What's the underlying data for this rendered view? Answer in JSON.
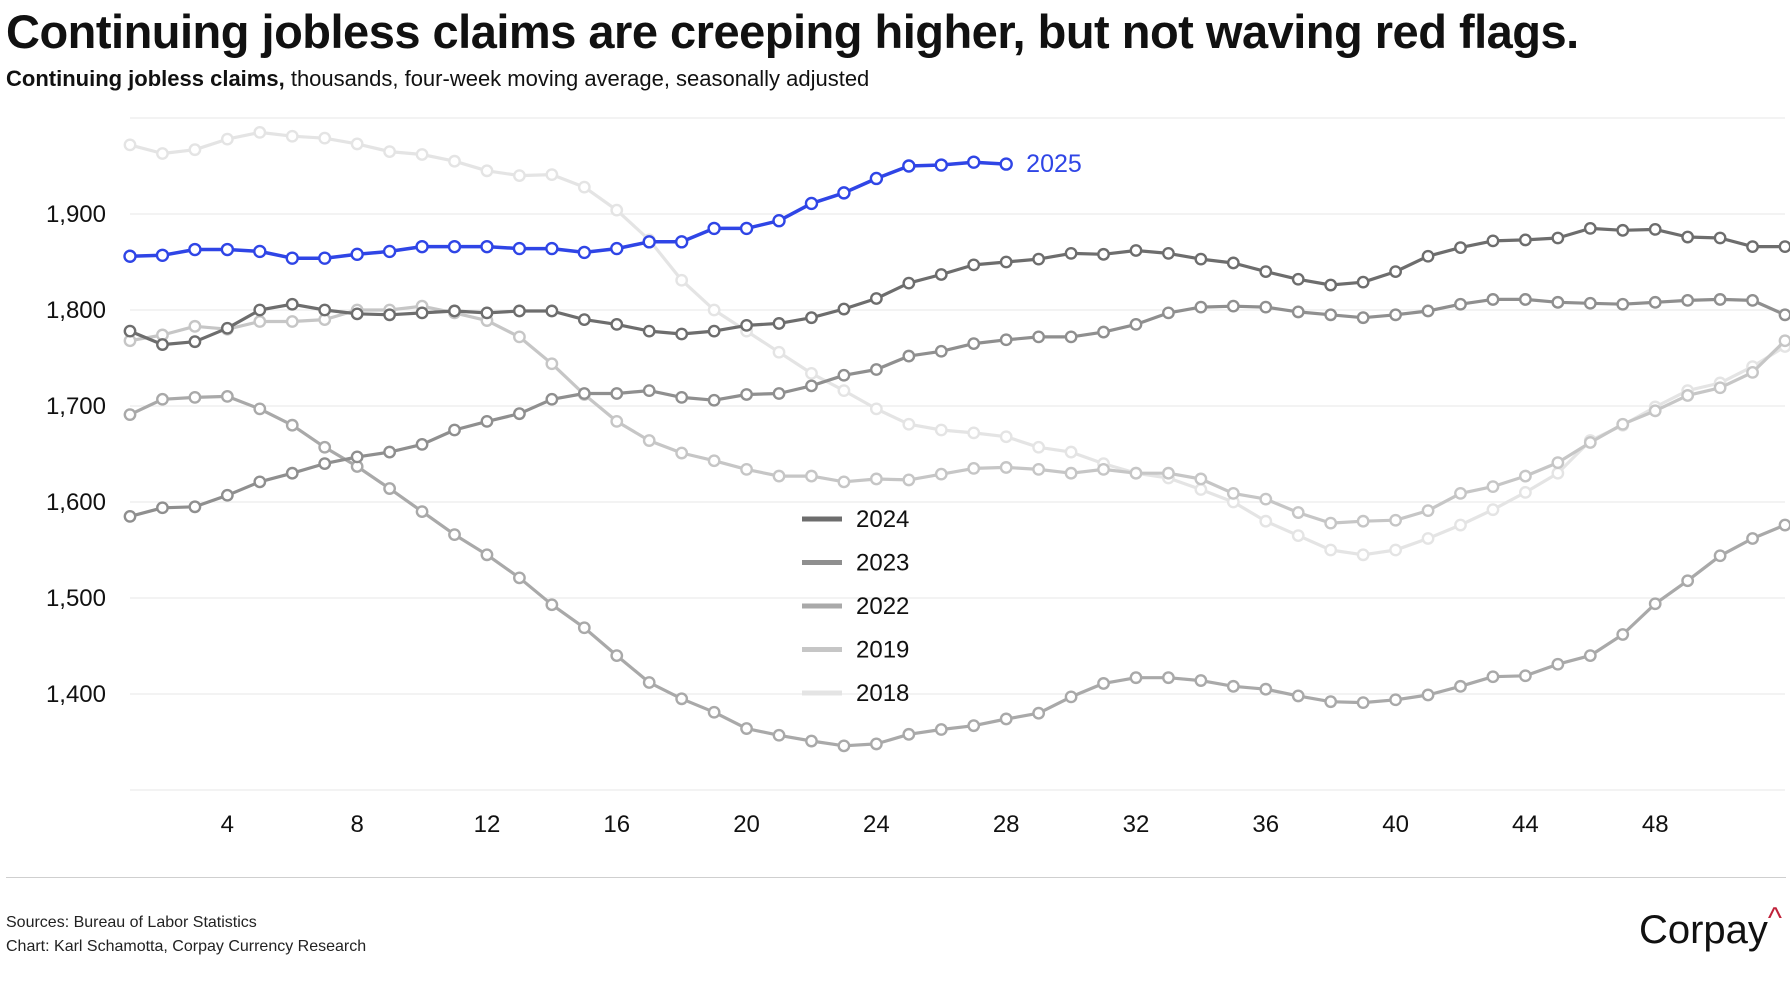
{
  "header": {
    "title": "Continuing jobless claims are creeping higher, but not waving red flags.",
    "subtitle_lead": "Continuing jobless claims,",
    "subtitle_rest": " thousands, four-week moving average, seasonally adjusted"
  },
  "footer": {
    "sources": "Sources: Bureau of Labor Statistics",
    "chart_credit": "Chart: Karl Schamotta, Corpay Currency Research",
    "logo_text": "Corpay",
    "logo_mark": "^"
  },
  "colors": {
    "highlight": "#2f45e6",
    "brand_accent": "#c0223a"
  },
  "chart_data": {
    "type": "line",
    "title": "Continuing jobless claims are creeping higher, but not waving red flags.",
    "subtitle": "Continuing jobless claims, thousands, four-week moving average, seasonally adjusted",
    "xlabel": "",
    "ylabel": "",
    "xlim": [
      1,
      52
    ],
    "ylim": [
      1300,
      2000
    ],
    "x_ticks": [
      4,
      8,
      12,
      16,
      20,
      24,
      28,
      32,
      36,
      40,
      44,
      48
    ],
    "y_ticks": [
      1400,
      1500,
      1600,
      1700,
      1800,
      1900
    ],
    "y_tick_labels": [
      "1,400",
      "1,500",
      "1,600",
      "1,700",
      "1,800",
      "1,900"
    ],
    "grid": true,
    "legend_position": "center",
    "series": [
      {
        "name": "2018",
        "color": "#e4e4e4",
        "in_legend": true,
        "x": [
          1,
          2,
          3,
          4,
          5,
          6,
          7,
          8,
          9,
          10,
          11,
          12,
          13,
          14,
          15,
          16,
          17,
          18,
          19,
          20,
          21,
          22,
          23,
          24,
          25,
          26,
          27,
          28,
          29,
          30,
          31,
          32,
          33,
          34,
          35,
          36,
          37,
          38,
          39,
          40,
          41,
          42,
          43,
          44,
          45,
          46,
          47,
          48,
          49,
          50,
          51,
          52
        ],
        "values": [
          1972,
          1963,
          1967,
          1978,
          1985,
          1981,
          1979,
          1973,
          1965,
          1962,
          1955,
          1945,
          1940,
          1941,
          1928,
          1904,
          1873,
          1831,
          1800,
          1778,
          1756,
          1734,
          1716,
          1697,
          1681,
          1675,
          1672,
          1668,
          1657,
          1652,
          1640,
          1630,
          1625,
          1613,
          1600,
          1580,
          1565,
          1550,
          1545,
          1550,
          1562,
          1576,
          1592,
          1610,
          1630,
          1664,
          1680,
          1699,
          1716,
          1724,
          1741,
          1762
        ]
      },
      {
        "name": "2019",
        "color": "#c6c6c6",
        "in_legend": true,
        "x": [
          1,
          2,
          3,
          4,
          5,
          6,
          7,
          8,
          9,
          10,
          11,
          12,
          13,
          14,
          15,
          16,
          17,
          18,
          19,
          20,
          21,
          22,
          23,
          24,
          25,
          26,
          27,
          28,
          29,
          30,
          31,
          32,
          33,
          34,
          35,
          36,
          37,
          38,
          39,
          40,
          41,
          42,
          43,
          44,
          45,
          46,
          47,
          48,
          49,
          50,
          51,
          52
        ],
        "values": [
          1768,
          1774,
          1783,
          1780,
          1788,
          1788,
          1790,
          1800,
          1800,
          1804,
          1797,
          1789,
          1772,
          1744,
          1712,
          1684,
          1664,
          1651,
          1643,
          1634,
          1627,
          1627,
          1621,
          1624,
          1623,
          1629,
          1635,
          1636,
          1634,
          1630,
          1634,
          1630,
          1630,
          1624,
          1609,
          1603,
          1589,
          1578,
          1580,
          1581,
          1591,
          1609,
          1616,
          1627,
          1641,
          1662,
          1681,
          1695,
          1711,
          1719,
          1735,
          1768
        ]
      },
      {
        "name": "2022",
        "color": "#a9a9a9",
        "in_legend": true,
        "x": [
          1,
          2,
          3,
          4,
          5,
          6,
          7,
          8,
          9,
          10,
          11,
          12,
          13,
          14,
          15,
          16,
          17,
          18,
          19,
          20,
          21,
          22,
          23,
          24,
          25,
          26,
          27,
          28,
          29,
          30,
          31,
          32,
          33,
          34,
          35,
          36,
          37,
          38,
          39,
          40,
          41,
          42,
          43,
          44,
          45,
          46,
          47,
          48,
          49,
          50,
          51,
          52
        ],
        "values": [
          1691,
          1707,
          1709,
          1710,
          1697,
          1680,
          1657,
          1637,
          1614,
          1590,
          1566,
          1545,
          1521,
          1493,
          1469,
          1440,
          1412,
          1395,
          1381,
          1364,
          1357,
          1351,
          1346,
          1348,
          1358,
          1363,
          1367,
          1374,
          1380,
          1397,
          1411,
          1417,
          1417,
          1414,
          1408,
          1405,
          1398,
          1392,
          1391,
          1394,
          1399,
          1408,
          1418,
          1419,
          1431,
          1440,
          1462,
          1494,
          1518,
          1544,
          1562,
          1576
        ]
      },
      {
        "name": "2023",
        "color": "#8f8f8f",
        "in_legend": true,
        "x": [
          1,
          2,
          3,
          4,
          5,
          6,
          7,
          8,
          9,
          10,
          11,
          12,
          13,
          14,
          15,
          16,
          17,
          18,
          19,
          20,
          21,
          22,
          23,
          24,
          25,
          26,
          27,
          28,
          29,
          30,
          31,
          32,
          33,
          34,
          35,
          36,
          37,
          38,
          39,
          40,
          41,
          42,
          43,
          44,
          45,
          46,
          47,
          48,
          49,
          50,
          51,
          52
        ],
        "values": [
          1585,
          1594,
          1595,
          1607,
          1621,
          1630,
          1640,
          1647,
          1652,
          1660,
          1675,
          1684,
          1692,
          1707,
          1713,
          1713,
          1716,
          1709,
          1706,
          1712,
          1713,
          1721,
          1732,
          1738,
          1752,
          1757,
          1765,
          1769,
          1772,
          1772,
          1777,
          1785,
          1797,
          1803,
          1804,
          1803,
          1798,
          1795,
          1792,
          1795,
          1799,
          1806,
          1811,
          1811,
          1808,
          1807,
          1806,
          1808,
          1810,
          1811,
          1810,
          1795
        ]
      },
      {
        "name": "2024",
        "color": "#6d6d6d",
        "in_legend": true,
        "x": [
          1,
          2,
          3,
          4,
          5,
          6,
          7,
          8,
          9,
          10,
          11,
          12,
          13,
          14,
          15,
          16,
          17,
          18,
          19,
          20,
          21,
          22,
          23,
          24,
          25,
          26,
          27,
          28,
          29,
          30,
          31,
          32,
          33,
          34,
          35,
          36,
          37,
          38,
          39,
          40,
          41,
          42,
          43,
          44,
          45,
          46,
          47,
          48,
          49,
          50,
          51,
          52
        ],
        "values": [
          1778,
          1764,
          1767,
          1781,
          1800,
          1806,
          1800,
          1796,
          1795,
          1797,
          1799,
          1797,
          1799,
          1799,
          1790,
          1785,
          1778,
          1775,
          1778,
          1784,
          1786,
          1792,
          1801,
          1812,
          1828,
          1837,
          1847,
          1850,
          1853,
          1859,
          1858,
          1862,
          1859,
          1853,
          1849,
          1840,
          1832,
          1826,
          1829,
          1840,
          1856,
          1865,
          1872,
          1873,
          1875,
          1885,
          1883,
          1884,
          1876,
          1875,
          1866,
          1866
        ]
      },
      {
        "name": "2025",
        "color": "#2f45e6",
        "in_legend": false,
        "x": [
          1,
          2,
          3,
          4,
          5,
          6,
          7,
          8,
          9,
          10,
          11,
          12,
          13,
          14,
          15,
          16,
          17,
          18,
          19,
          20,
          21,
          22,
          23,
          24,
          25,
          26,
          27,
          28
        ],
        "values": [
          1856,
          1857,
          1863,
          1863,
          1861,
          1854,
          1854,
          1858,
          1861,
          1866,
          1866,
          1866,
          1864,
          1864,
          1860,
          1864,
          1871,
          1871,
          1885,
          1885,
          1893,
          1911,
          1922,
          1937,
          1950,
          1951,
          1954,
          1952
        ]
      }
    ],
    "annotations": [
      {
        "text": "2025",
        "attached_to": "2025"
      }
    ]
  }
}
